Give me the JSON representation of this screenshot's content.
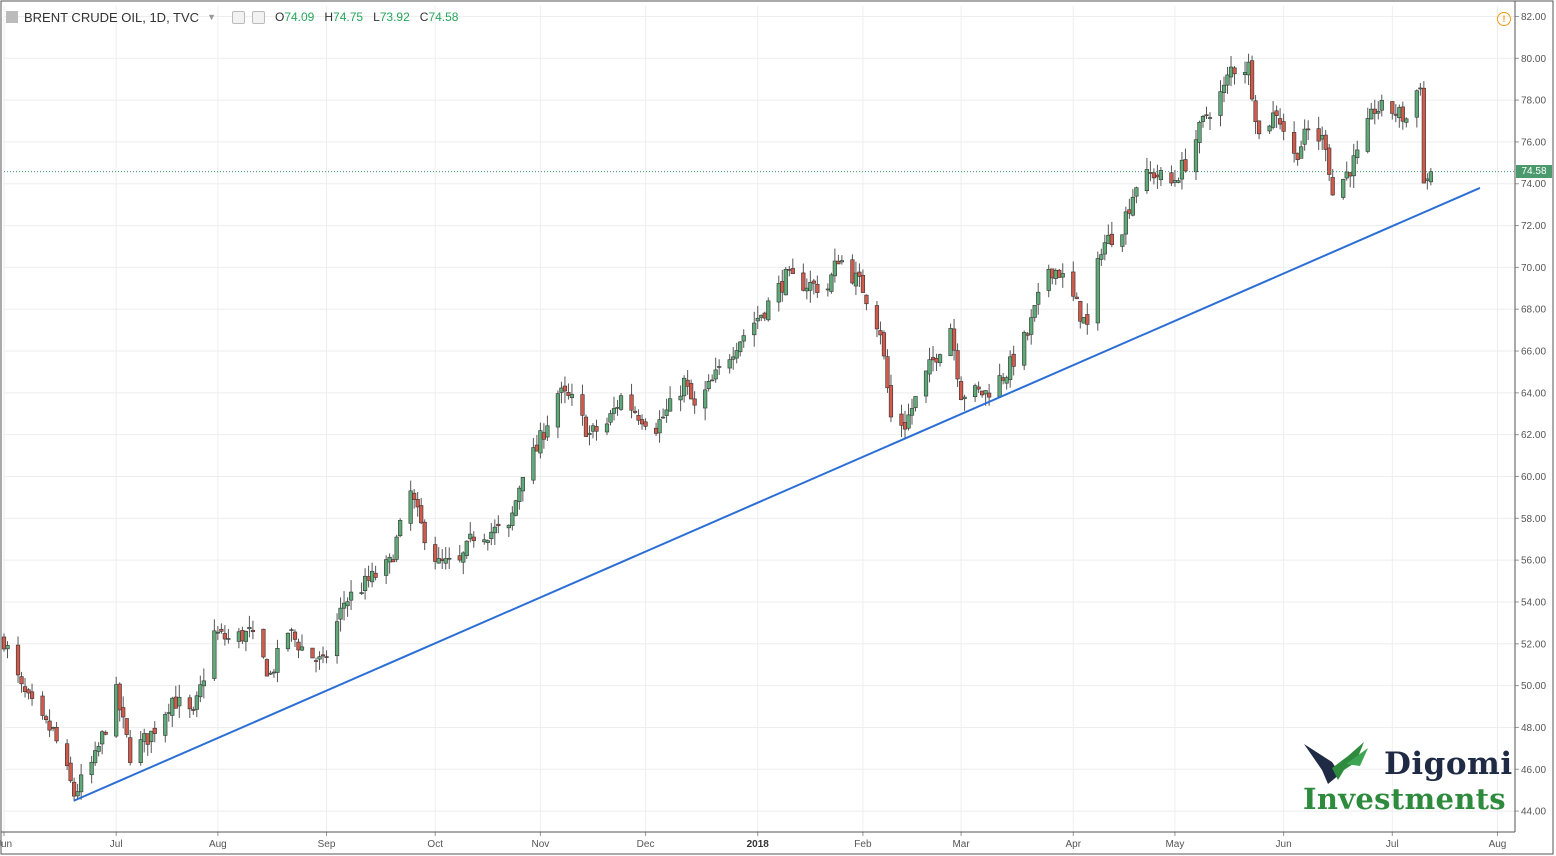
{
  "header": {
    "symbol": "BRENT CRUDE OIL, 1D, TVC",
    "open_label": "O",
    "open": "74.09",
    "high_label": "H",
    "high": "74.75",
    "low_label": "L",
    "low": "73.92",
    "close_label": "C",
    "close": "74.58"
  },
  "price_tag": "74.58",
  "logo": {
    "line1": "Digomi",
    "line2": "Investments"
  },
  "colors": {
    "up": "#26a65b",
    "down": "#cc3b2b",
    "trendline": "#2b6fd6",
    "last_price_line": "#4a9a6d"
  },
  "icons": [
    "warning-icon",
    "chart-toggle-icon",
    "logo-wing-icon"
  ],
  "chart_data": {
    "type": "candlestick",
    "title": "",
    "xlabel": "",
    "ylabel": "",
    "ylim": [
      43,
      82.5
    ],
    "y_ticks": [
      "44.00",
      "46.00",
      "48.00",
      "50.00",
      "52.00",
      "54.00",
      "56.00",
      "58.00",
      "60.00",
      "62.00",
      "64.00",
      "66.00",
      "68.00",
      "70.00",
      "72.00",
      "74.00",
      "76.00",
      "78.00",
      "80.00",
      "82.00"
    ],
    "x_range": [
      "2017-06-01",
      "2018-08-06"
    ],
    "x_ticks": [
      {
        "label": "Jun",
        "date": "2017-06-01"
      },
      {
        "label": "Jul",
        "date": "2017-07-03"
      },
      {
        "label": "Aug",
        "date": "2017-08-01"
      },
      {
        "label": "Sep",
        "date": "2017-09-01"
      },
      {
        "label": "Oct",
        "date": "2017-10-02"
      },
      {
        "label": "Nov",
        "date": "2017-11-01"
      },
      {
        "label": "Dec",
        "date": "2017-12-01"
      },
      {
        "label": "2018",
        "date": "2018-01-02",
        "bold": true
      },
      {
        "label": "Feb",
        "date": "2018-02-01"
      },
      {
        "label": "Mar",
        "date": "2018-03-01"
      },
      {
        "label": "Apr",
        "date": "2018-04-02"
      },
      {
        "label": "May",
        "date": "2018-05-01"
      },
      {
        "label": "Jun",
        "date": "2018-06-01"
      },
      {
        "label": "Jul",
        "date": "2018-07-02"
      },
      {
        "label": "Aug",
        "date": "2018-08-01"
      }
    ],
    "close_path": [
      [
        "2017-06-01",
        52.2
      ],
      [
        "2017-06-06",
        49.8
      ],
      [
        "2017-06-12",
        48.2
      ],
      [
        "2017-06-15",
        47.8
      ],
      [
        "2017-06-21",
        44.8
      ],
      [
        "2017-06-27",
        46.5
      ],
      [
        "2017-07-03",
        49.6
      ],
      [
        "2017-07-07",
        46.7
      ],
      [
        "2017-07-13",
        47.7
      ],
      [
        "2017-07-19",
        49.4
      ],
      [
        "2017-07-25",
        48.5
      ],
      [
        "2017-07-31",
        52.5
      ],
      [
        "2017-08-04",
        52.2
      ],
      [
        "2017-08-10",
        52.5
      ],
      [
        "2017-08-16",
        50.5
      ],
      [
        "2017-08-21",
        52.6
      ],
      [
        "2017-08-25",
        51.8
      ],
      [
        "2017-08-31",
        51.0
      ],
      [
        "2017-09-06",
        54.0
      ],
      [
        "2017-09-13",
        55.0
      ],
      [
        "2017-09-19",
        55.8
      ],
      [
        "2017-09-25",
        59.2
      ],
      [
        "2017-09-28",
        57.6
      ],
      [
        "2017-10-03",
        55.8
      ],
      [
        "2017-10-09",
        55.8
      ],
      [
        "2017-10-13",
        57.2
      ],
      [
        "2017-10-19",
        57.4
      ],
      [
        "2017-10-23",
        57.4
      ],
      [
        "2017-10-27",
        60.3
      ],
      [
        "2017-10-31",
        61.3
      ],
      [
        "2017-11-06",
        64.0
      ],
      [
        "2017-11-10",
        63.6
      ],
      [
        "2017-11-15",
        62.0
      ],
      [
        "2017-11-20",
        62.5
      ],
      [
        "2017-11-24",
        63.8
      ],
      [
        "2017-11-29",
        63.0
      ],
      [
        "2017-12-04",
        62.4
      ],
      [
        "2017-12-08",
        63.3
      ],
      [
        "2017-12-12",
        64.5
      ],
      [
        "2017-12-15",
        63.2
      ],
      [
        "2017-12-20",
        64.5
      ],
      [
        "2017-12-27",
        66.4
      ],
      [
        "2018-01-04",
        68.0
      ],
      [
        "2018-01-10",
        69.5
      ],
      [
        "2018-01-16",
        69.2
      ],
      [
        "2018-01-22",
        69.0
      ],
      [
        "2018-01-25",
        70.5
      ],
      [
        "2018-02-01",
        69.0
      ],
      [
        "2018-02-06",
        67.0
      ],
      [
        "2018-02-09",
        62.8
      ],
      [
        "2018-02-13",
        62.5
      ],
      [
        "2018-02-20",
        65.2
      ],
      [
        "2018-02-26",
        67.2
      ],
      [
        "2018-03-01",
        64.0
      ],
      [
        "2018-03-08",
        64.0
      ],
      [
        "2018-03-14",
        65.0
      ],
      [
        "2018-03-20",
        66.8
      ],
      [
        "2018-03-26",
        70.0
      ],
      [
        "2018-03-29",
        69.8
      ],
      [
        "2018-04-04",
        67.8
      ],
      [
        "2018-04-06",
        67.1
      ],
      [
        "2018-04-10",
        71.0
      ],
      [
        "2018-04-16",
        72.0
      ],
      [
        "2018-04-20",
        74.0
      ],
      [
        "2018-04-25",
        74.5
      ],
      [
        "2018-04-30",
        74.0
      ],
      [
        "2018-05-04",
        75.0
      ],
      [
        "2018-05-10",
        77.3
      ],
      [
        "2018-05-15",
        78.5
      ],
      [
        "2018-05-17",
        79.5
      ],
      [
        "2018-05-22",
        79.6
      ],
      [
        "2018-05-25",
        76.3
      ],
      [
        "2018-05-30",
        77.5
      ],
      [
        "2018-06-04",
        75.3
      ],
      [
        "2018-06-08",
        76.5
      ],
      [
        "2018-06-13",
        76.0
      ],
      [
        "2018-06-15",
        73.5
      ],
      [
        "2018-06-19",
        74.5
      ],
      [
        "2018-06-22",
        75.3
      ],
      [
        "2018-06-27",
        77.6
      ],
      [
        "2018-07-02",
        77.5
      ],
      [
        "2018-07-06",
        77.1
      ],
      [
        "2018-07-10",
        78.9
      ],
      [
        "2018-07-11",
        74.0
      ],
      [
        "2018-07-13",
        74.58
      ]
    ],
    "trendline": {
      "start": [
        "2017-06-21",
        44.5
      ],
      "end": [
        "2018-07-27",
        73.8
      ],
      "color": "#2b6fd6"
    },
    "last_price": 74.58
  }
}
